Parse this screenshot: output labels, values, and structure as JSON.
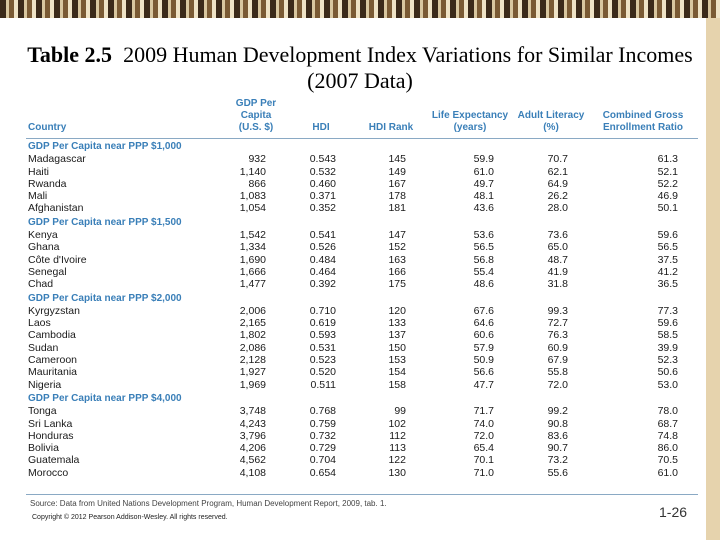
{
  "title": {
    "label": "Table 2.5",
    "text": "2009 Human Development Index Variations for Similar Incomes (2007 Data)"
  },
  "headers": [
    "Country",
    "GDP Per Capita (U.S. $)",
    "HDI",
    "HDI Rank",
    "Life Expectancy (years)",
    "Adult Literacy (%)",
    "Combined Gross Enrollment Ratio"
  ],
  "groups": [
    {
      "label": "GDP Per Capita near PPP $1,000",
      "rows": [
        [
          "Madagascar",
          "932",
          "0.543",
          "145",
          "59.9",
          "70.7",
          "61.3"
        ],
        [
          "Haiti",
          "1,140",
          "0.532",
          "149",
          "61.0",
          "62.1",
          "52.1"
        ],
        [
          "Rwanda",
          "866",
          "0.460",
          "167",
          "49.7",
          "64.9",
          "52.2"
        ],
        [
          "Mali",
          "1,083",
          "0.371",
          "178",
          "48.1",
          "26.2",
          "46.9"
        ],
        [
          "Afghanistan",
          "1,054",
          "0.352",
          "181",
          "43.6",
          "28.0",
          "50.1"
        ]
      ]
    },
    {
      "label": "GDP Per Capita near PPP $1,500",
      "rows": [
        [
          "Kenya",
          "1,542",
          "0.541",
          "147",
          "53.6",
          "73.6",
          "59.6"
        ],
        [
          "Ghana",
          "1,334",
          "0.526",
          "152",
          "56.5",
          "65.0",
          "56.5"
        ],
        [
          "Côte d'Ivoire",
          "1,690",
          "0.484",
          "163",
          "56.8",
          "48.7",
          "37.5"
        ],
        [
          "Senegal",
          "1,666",
          "0.464",
          "166",
          "55.4",
          "41.9",
          "41.2"
        ],
        [
          "Chad",
          "1,477",
          "0.392",
          "175",
          "48.6",
          "31.8",
          "36.5"
        ]
      ]
    },
    {
      "label": "GDP Per Capita near PPP $2,000",
      "rows": [
        [
          "Kyrgyzstan",
          "2,006",
          "0.710",
          "120",
          "67.6",
          "99.3",
          "77.3"
        ],
        [
          "Laos",
          "2,165",
          "0.619",
          "133",
          "64.6",
          "72.7",
          "59.6"
        ],
        [
          "Cambodia",
          "1,802",
          "0.593",
          "137",
          "60.6",
          "76.3",
          "58.5"
        ],
        [
          "Sudan",
          "2,086",
          "0.531",
          "150",
          "57.9",
          "60.9",
          "39.9"
        ],
        [
          "Cameroon",
          "2,128",
          "0.523",
          "153",
          "50.9",
          "67.9",
          "52.3"
        ],
        [
          "Mauritania",
          "1,927",
          "0.520",
          "154",
          "56.6",
          "55.8",
          "50.6"
        ],
        [
          "Nigeria",
          "1,969",
          "0.511",
          "158",
          "47.7",
          "72.0",
          "53.0"
        ]
      ]
    },
    {
      "label": "GDP Per Capita near PPP $4,000",
      "rows": [
        [
          "Tonga",
          "3,748",
          "0.768",
          "99",
          "71.7",
          "99.2",
          "78.0"
        ],
        [
          "Sri Lanka",
          "4,243",
          "0.759",
          "102",
          "74.0",
          "90.8",
          "68.7"
        ],
        [
          "Honduras",
          "3,796",
          "0.732",
          "112",
          "72.0",
          "83.6",
          "74.8"
        ],
        [
          "Bolivia",
          "4,206",
          "0.729",
          "113",
          "65.4",
          "90.7",
          "86.0"
        ],
        [
          "Guatemala",
          "4,562",
          "0.704",
          "122",
          "70.1",
          "73.2",
          "70.5"
        ],
        [
          "Morocco",
          "4,108",
          "0.654",
          "130",
          "71.0",
          "55.6",
          "61.0"
        ]
      ]
    }
  ],
  "source": "Source: Data from United Nations Development Program, Human Development Report, 2009, tab. 1.",
  "copyright": "Copyright © 2012 Pearson Addison-Wesley. All rights reserved.",
  "page_number": "1-26"
}
